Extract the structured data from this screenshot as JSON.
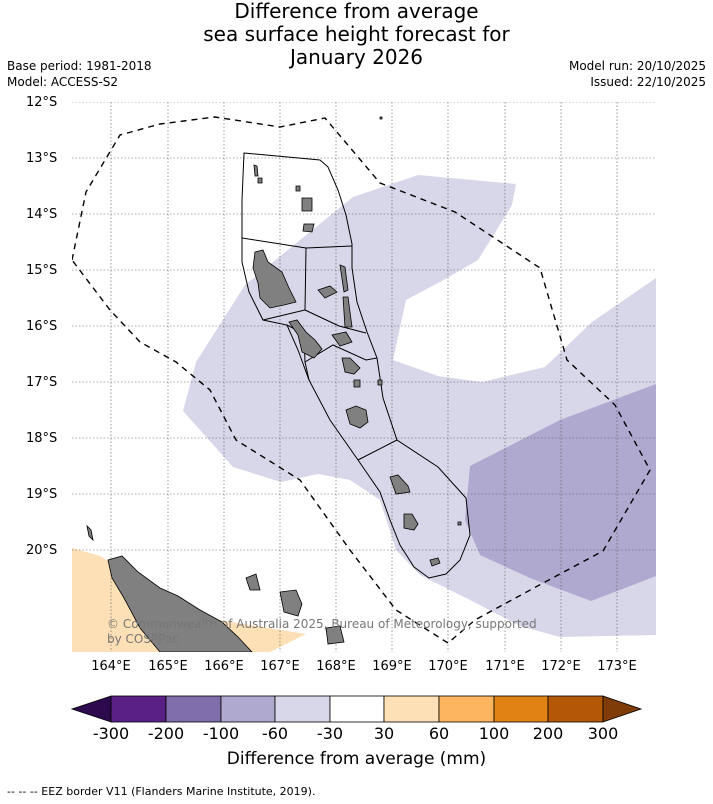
{
  "title": {
    "line1": "Difference from average",
    "line2": "sea surface height forecast for",
    "line3": "January 2026"
  },
  "meta": {
    "base_period": "Base period: 1981-2018",
    "model": "Model: ACCESS-S2",
    "model_run": "Model run: 20/10/2025",
    "issued": "Issued: 22/10/2025"
  },
  "map": {
    "lat_labels": [
      "12°S",
      "13°S",
      "14°S",
      "15°S",
      "16°S",
      "17°S",
      "18°S",
      "19°S",
      "20°S"
    ],
    "lon_labels": [
      "164°E",
      "165°E",
      "166°E",
      "167°E",
      "168°E",
      "169°E",
      "170°E",
      "171°E",
      "172°E",
      "173°E"
    ],
    "copyright_line1": "© Commonwealth of Australia 2025, Bureau of Meteorology, supported",
    "copyright_line2": "by COSPPac",
    "land_color": "#808080",
    "eez_style": "dashed"
  },
  "colorbar": {
    "ticks": [
      "-300",
      "-200",
      "-100",
      "-60",
      "-30",
      "30",
      "60",
      "100",
      "200",
      "300"
    ],
    "colors": [
      "#2d0a4e",
      "#5a2085",
      "#7f6eab",
      "#afa8cf",
      "#d7d7e9",
      "#ffffff",
      "#fde0b5",
      "#fdb55f",
      "#e08214",
      "#b35806",
      "#7f3b08"
    ],
    "title": "Difference from average (mm)"
  },
  "footer": {
    "eez_note": "--  --  -- EEZ border V11 (Flanders Marine Institute, 2019)."
  }
}
